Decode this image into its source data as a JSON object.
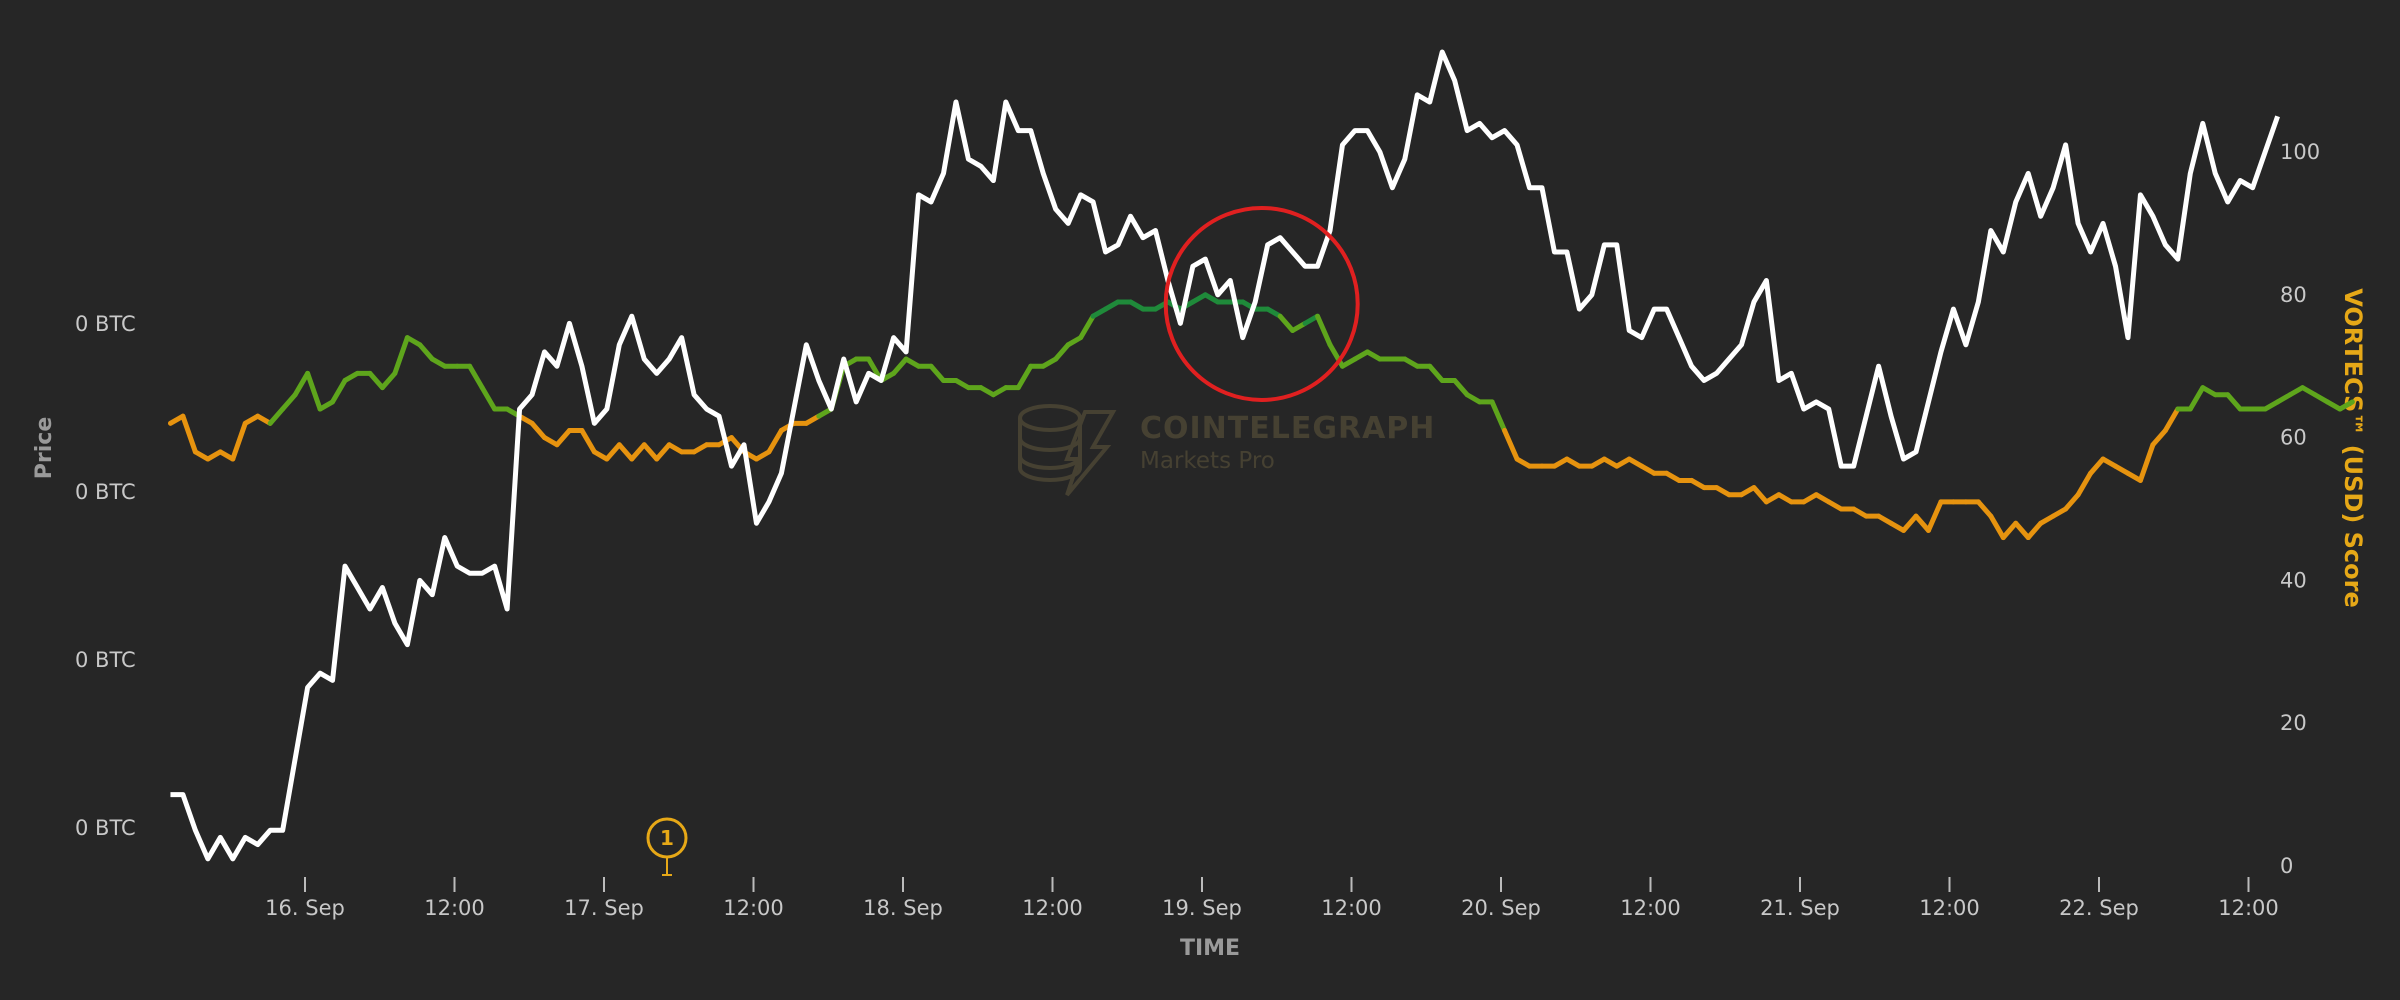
{
  "chart_data": {
    "type": "line",
    "x_tick_labels": [
      "16. Sep",
      "12:00",
      "17. Sep",
      "12:00",
      "18. Sep",
      "12:00",
      "19. Sep",
      "12:00",
      "20. Sep",
      "12:00",
      "21. Sep",
      "12:00",
      "22. Sep",
      "12:00"
    ],
    "xlabel": "TIME",
    "left_axis": {
      "label": "Price",
      "tick_labels": [
        "0 BTC",
        "0 BTC",
        "0 BTC",
        "0 BTC"
      ]
    },
    "right_axis": {
      "label": "VORTECS™ (USD) Score",
      "ticks": [
        0,
        20,
        40,
        60,
        80,
        100
      ],
      "ylim": [
        0,
        115
      ]
    },
    "series": [
      {
        "color": "#ffffff",
        "axis": "price",
        "x_start_day": 15.55,
        "x_step_day": 0.0417,
        "values": [
          10,
          10,
          5,
          1,
          4,
          1,
          4,
          3,
          5,
          5,
          15,
          25,
          27,
          26,
          42,
          39,
          36,
          39,
          34,
          31,
          40,
          38,
          46,
          42,
          41,
          41,
          42,
          36,
          64,
          66,
          72,
          70,
          76,
          70,
          62,
          64,
          73,
          77,
          71,
          69,
          71,
          74,
          66,
          64,
          63,
          56,
          59,
          48,
          51,
          55,
          64,
          73,
          68,
          64,
          71,
          65,
          69,
          68,
          74,
          72,
          94,
          93,
          97,
          107,
          99,
          98,
          96,
          107,
          103,
          103,
          97,
          92,
          90,
          94,
          93,
          86,
          87,
          91,
          88,
          89,
          82,
          76,
          84,
          85,
          80,
          82,
          74,
          79,
          87,
          88,
          86,
          84,
          84,
          89,
          101,
          103,
          103,
          100,
          95,
          99,
          108,
          107,
          114,
          110,
          103,
          104,
          102,
          103,
          101,
          95,
          95,
          86,
          86,
          78,
          80,
          87,
          87,
          75,
          74,
          78,
          78,
          74,
          70,
          68,
          69,
          71,
          73,
          79,
          82,
          68,
          69,
          64,
          65,
          64,
          56,
          56,
          63,
          70,
          63,
          57,
          58,
          65,
          72,
          78,
          73,
          79,
          89,
          86,
          93,
          97,
          91,
          95,
          101,
          90,
          86,
          90,
          84,
          74,
          94,
          91,
          87,
          85,
          97,
          104,
          97,
          93,
          96,
          95,
          100,
          105
        ],
        "price_ylim_map": "drawn in pixel-free units"
      },
      {
        "color": "#e6930f",
        "color_high": "#5ea51c",
        "color_peak": "#1f8a3a",
        "axis": "score",
        "x_start_day": 15.55,
        "x_step_day": 0.0417,
        "values": [
          62,
          63,
          58,
          57,
          58,
          57,
          62,
          63,
          62,
          64,
          66,
          69,
          64,
          65,
          68,
          69,
          69,
          67,
          69,
          74,
          73,
          71,
          70,
          70,
          70,
          67,
          64,
          64,
          63,
          62,
          60,
          59,
          61,
          61,
          58,
          57,
          59,
          57,
          59,
          57,
          59,
          58,
          58,
          59,
          59,
          60,
          58,
          57,
          58,
          61,
          62,
          62,
          63,
          64,
          70,
          71,
          71,
          68,
          69,
          71,
          70,
          70,
          68,
          68,
          67,
          67,
          66,
          67,
          67,
          70,
          70,
          71,
          73,
          74,
          77,
          78,
          79,
          79,
          78,
          78,
          79,
          78,
          79,
          80,
          79,
          79,
          79,
          78,
          78,
          77,
          75,
          76,
          77,
          73,
          70,
          71,
          72,
          71,
          71,
          71,
          70,
          70,
          68,
          68,
          66,
          65,
          65,
          61,
          57,
          56,
          56,
          56,
          57,
          56,
          56,
          57,
          56,
          57,
          56,
          55,
          55,
          54,
          54,
          53,
          53,
          52,
          52,
          53,
          51,
          52,
          51,
          51,
          52,
          51,
          50,
          50,
          49,
          49,
          48,
          47,
          49,
          47,
          51,
          51,
          51,
          51,
          49,
          46,
          48,
          46,
          48,
          49,
          50,
          52,
          55,
          57,
          56,
          55,
          54,
          59,
          61,
          64,
          64,
          67,
          66,
          66,
          64,
          64,
          64,
          65,
          66,
          67,
          66,
          65,
          64,
          65
        ]
      }
    ],
    "thresholds": {
      "green_above": 63,
      "peak_above": 76.5
    }
  },
  "annotations": {
    "event_marker": "1",
    "highlight_circle_x_day": 19.3,
    "highlight_circle_score": 79
  },
  "watermark": {
    "brand": "COINTELEGRAPH",
    "sub": "Markets Pro"
  },
  "colors": {
    "background": "#262626",
    "price_line": "#ffffff",
    "score_low": "#d08a14",
    "score_mid": "#5ea51c",
    "score_peak": "#1f8a3a",
    "highlight": "#e02020",
    "marker": "#e6a817"
  }
}
